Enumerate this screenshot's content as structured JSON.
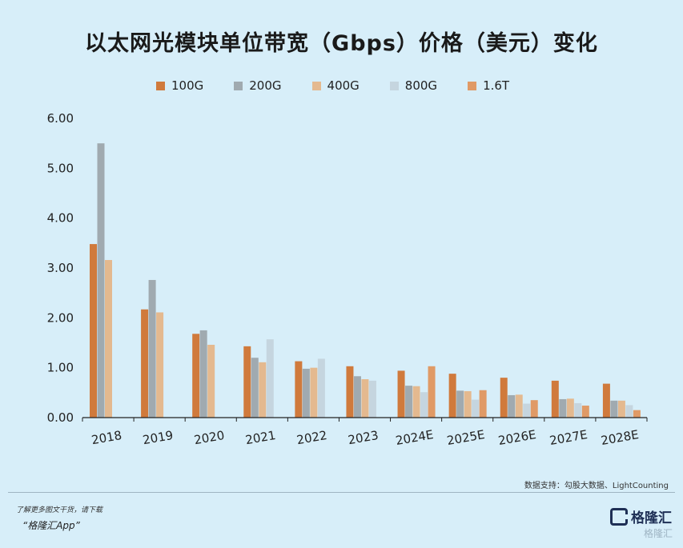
{
  "title": "以太网光模块单位带宽（Gbps）价格（美元）变化",
  "source": "数据支持：勾股大数据、LightCounting",
  "footer": {
    "line1": "了解更多图文干货，请下载",
    "line2": "“格隆汇App”",
    "logo_text": "格隆汇",
    "watermark_corner": "格隆汇"
  },
  "colors": {
    "100G": "#d07a3c",
    "200G": "#a0aab0",
    "400G": "#e4b98f",
    "800G": "#c5d5df",
    "1.6T": "#e09a66",
    "axis": "#222222"
  },
  "chart_data": {
    "type": "bar",
    "categories": [
      "2018",
      "2019",
      "2020",
      "2021",
      "2022",
      "2023",
      "2024E",
      "2025E",
      "2026E",
      "2027E",
      "2028E"
    ],
    "ylim": [
      0,
      6
    ],
    "yticks": [
      "0.00",
      "1.00",
      "2.00",
      "3.00",
      "4.00",
      "5.00",
      "6.00"
    ],
    "legend_position": "top",
    "grid": false,
    "series": [
      {
        "name": "100G",
        "values": [
          3.48,
          2.17,
          1.68,
          1.43,
          1.13,
          1.03,
          0.94,
          0.88,
          0.8,
          0.74,
          0.68
        ]
      },
      {
        "name": "200G",
        "values": [
          5.5,
          2.76,
          1.75,
          1.2,
          0.98,
          0.83,
          0.64,
          0.54,
          0.45,
          0.37,
          0.34
        ]
      },
      {
        "name": "400G",
        "values": [
          3.16,
          2.11,
          1.46,
          1.11,
          1.0,
          0.77,
          0.63,
          0.53,
          0.46,
          0.38,
          0.34
        ]
      },
      {
        "name": "800G",
        "values": [
          null,
          null,
          null,
          1.57,
          1.18,
          0.74,
          0.51,
          0.36,
          0.28,
          0.29,
          0.25
        ]
      },
      {
        "name": "1.6T",
        "values": [
          null,
          null,
          null,
          null,
          null,
          null,
          1.03,
          0.55,
          0.35,
          0.24,
          0.15
        ]
      }
    ]
  }
}
